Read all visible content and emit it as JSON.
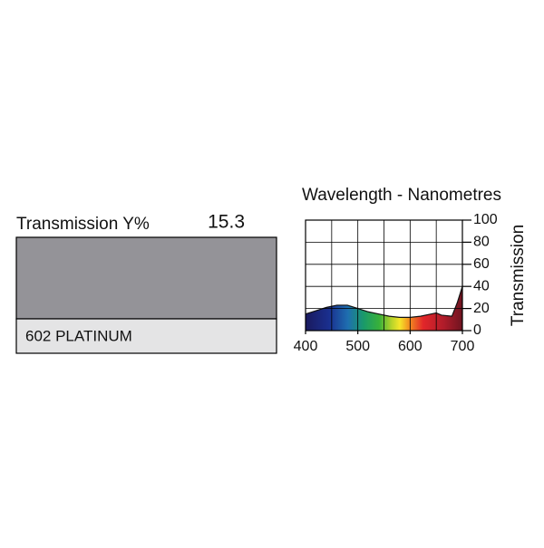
{
  "swatch": {
    "label": "Transmission Y%",
    "transmission_y": 15.3,
    "name": "602 PLATINUM",
    "color": "#949398",
    "label_bg": "#e4e4e5"
  },
  "chart_data": {
    "type": "area",
    "title": "Wavelength - Nanometres",
    "y_label": "Transmission",
    "x": [
      400,
      420,
      440,
      460,
      480,
      500,
      520,
      540,
      560,
      580,
      600,
      620,
      640,
      650,
      660,
      680,
      690,
      700
    ],
    "values": [
      15,
      18,
      21,
      23,
      23,
      20,
      17,
      15,
      13,
      12,
      12,
      13,
      15,
      16,
      14,
      13,
      25,
      40
    ],
    "xlim": [
      400,
      700
    ],
    "ylim": [
      0,
      100
    ],
    "xticks": [
      400,
      500,
      600,
      700
    ],
    "yticks": [
      0,
      20,
      40,
      60,
      80,
      100
    ],
    "xgrid": [
      450,
      500,
      550,
      600,
      650
    ],
    "grid": true
  }
}
